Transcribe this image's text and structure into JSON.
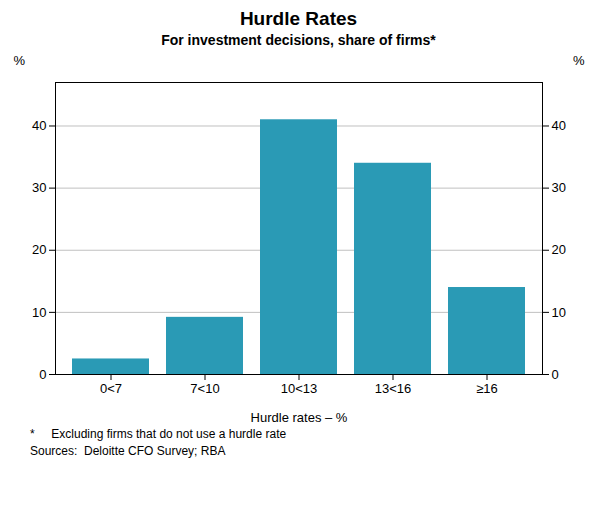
{
  "chart_data": {
    "type": "bar",
    "title": "Hurdle Rates",
    "subtitle": "For investment decisions, share of firms*",
    "categories": [
      "0<7",
      "7<10",
      "10<13",
      "13<16",
      "≥16"
    ],
    "values": [
      2.5,
      9.2,
      41.0,
      34.0,
      14.0
    ],
    "color": "#2a9ab5",
    "xlabel": "Hurdle rates – %",
    "ylabel": "%",
    "y2label": "%",
    "ylim": [
      0,
      47
    ],
    "yticks": [
      0,
      10,
      20,
      30,
      40
    ],
    "y2lim": [
      0,
      47
    ],
    "y2ticks": [
      0,
      10,
      20,
      30,
      40
    ],
    "grid": true,
    "footnotes": [
      "*     Excluding firms that do not use a hurdle rate",
      "Sources:  Deloitte CFO Survey; RBA"
    ]
  }
}
